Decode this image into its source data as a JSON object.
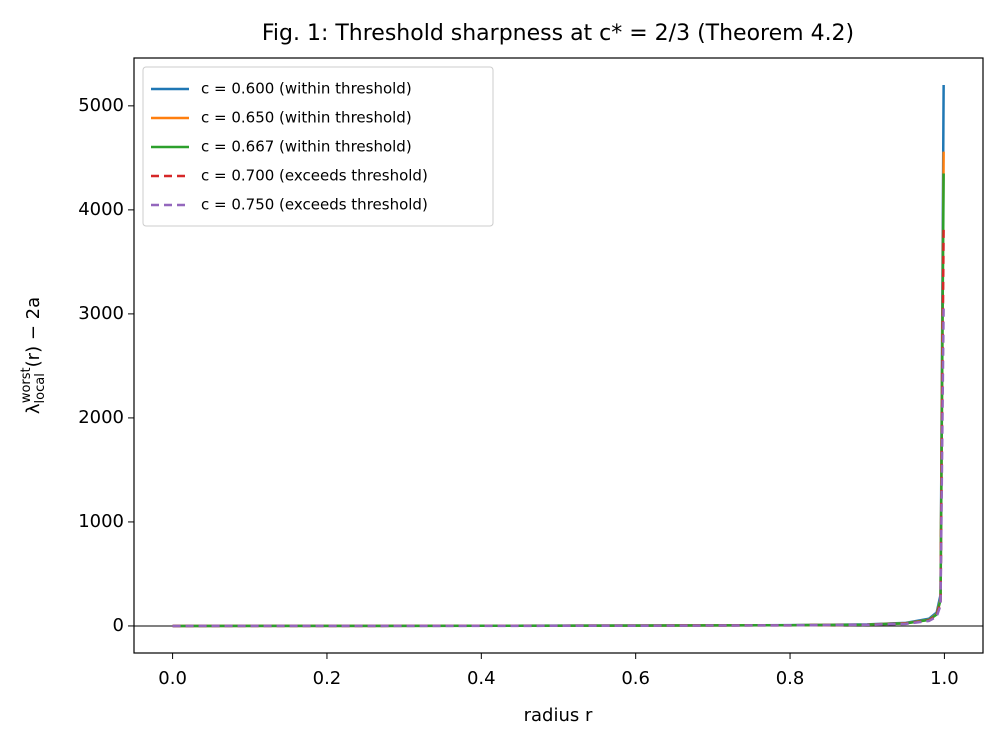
{
  "chart_data": {
    "type": "line",
    "title": "Fig. 1: Threshold sharpness at c* = 2/3 (Theorem 4.2)",
    "xlabel": "radius r",
    "ylabel": [
      "λ",
      "local",
      "worst",
      "(r) − 2a"
    ],
    "x": [
      0,
      0.2,
      0.4,
      0.6,
      0.8,
      0.9,
      0.95,
      0.98,
      0.99,
      0.995,
      0.999
    ],
    "series": [
      {
        "name": "c = 0.600 (within threshold)",
        "color": "#1f77b4",
        "dash": false,
        "values": [
          0,
          1,
          2,
          4,
          8,
          15,
          30,
          70,
          130,
          300,
          5200
        ]
      },
      {
        "name": "c = 0.650 (within threshold)",
        "color": "#ff7f0e",
        "dash": false,
        "values": [
          0,
          1,
          2,
          3,
          7,
          13,
          26,
          60,
          115,
          260,
          4560
        ]
      },
      {
        "name": "c = 0.667 (within threshold)",
        "color": "#2ca02c",
        "dash": false,
        "values": [
          0,
          1,
          2,
          3,
          7,
          13,
          25,
          58,
          110,
          250,
          4350
        ]
      },
      {
        "name": "c = 0.700 (exceeds threshold)",
        "color": "#d62728",
        "dash": true,
        "values": [
          0,
          1,
          2,
          3,
          6,
          12,
          23,
          53,
          100,
          230,
          3840
        ]
      },
      {
        "name": "c = 0.750 (exceeds threshold)",
        "color": "#9467bd",
        "dash": true,
        "values": [
          0,
          1,
          1,
          2,
          6,
          11,
          20,
          48,
          90,
          200,
          3100
        ]
      }
    ],
    "hlines": [
      0
    ],
    "xlim": [
      -0.05,
      1.05
    ],
    "ylim": [
      -260,
      5460
    ],
    "xticks": [
      {
        "value": 0,
        "label": "0.0"
      },
      {
        "value": 0.2,
        "label": "0.2"
      },
      {
        "value": 0.4,
        "label": "0.4"
      },
      {
        "value": 0.6,
        "label": "0.6"
      },
      {
        "value": 0.8,
        "label": "0.8"
      },
      {
        "value": 1,
        "label": "1.0"
      }
    ],
    "yticks": [
      0,
      1000,
      2000,
      3000,
      4000,
      5000
    ],
    "legend": "upper-left"
  }
}
